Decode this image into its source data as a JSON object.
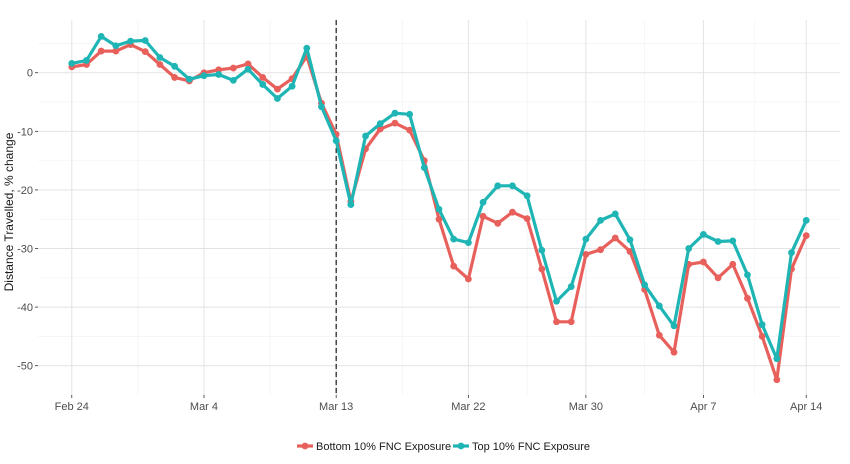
{
  "chart_data": {
    "type": "line",
    "ylabel": "Distance Travelled, % change",
    "xlabel": "",
    "ylim": [
      -55,
      9
    ],
    "y_ticks": [
      0,
      -10,
      -20,
      -30,
      -40,
      -50
    ],
    "y_tick_labels": [
      "0",
      "-10",
      "-20",
      "-30",
      "-40",
      "-50"
    ],
    "x_tick_labels": [
      "Feb 24",
      "Mar  4",
      "Mar 13",
      "Mar 22",
      "Mar 30",
      "Apr  7",
      "Apr 14"
    ],
    "x_tick_index": [
      0,
      9,
      18,
      27,
      35,
      43,
      50
    ],
    "x_range": [
      -2.3,
      52.3
    ],
    "vline_index": 18,
    "grid": true,
    "legend_position": "bottom",
    "series": [
      {
        "name": "Bottom 10% FNC Exposure",
        "color": "#E8605C",
        "values": [
          1.0,
          1.4,
          3.7,
          3.7,
          4.8,
          3.6,
          1.4,
          -0.8,
          -1.4,
          0.0,
          0.5,
          0.8,
          1.5,
          -0.8,
          -2.8,
          -1.0,
          2.8,
          -5.2,
          -10.5,
          -22.0,
          -13.0,
          -9.6,
          -8.6,
          -9.8,
          -15.0,
          -25.0,
          -33.0,
          -35.2,
          -24.5,
          -25.7,
          -23.8,
          -24.9,
          -33.5,
          -42.5,
          -42.5,
          -31.0,
          -30.2,
          -28.2,
          -30.5,
          -37.0,
          -44.8,
          -47.7,
          -32.7,
          -32.3,
          -35.0,
          -32.7,
          -38.5,
          -45.0,
          -52.4,
          -33.5,
          -27.8
        ]
      },
      {
        "name": "Top 10% FNC Exposure",
        "color": "#1FB5B5",
        "values": [
          1.6,
          2.1,
          6.2,
          4.6,
          5.4,
          5.5,
          2.6,
          1.1,
          -1.1,
          -0.5,
          -0.3,
          -1.3,
          0.6,
          -2.0,
          -4.4,
          -2.3,
          4.2,
          -5.8,
          -11.6,
          -22.5,
          -10.8,
          -8.7,
          -6.9,
          -7.1,
          -16.2,
          -23.3,
          -28.4,
          -29.0,
          -22.1,
          -19.3,
          -19.3,
          -21.0,
          -30.3,
          -39.0,
          -36.5,
          -28.4,
          -25.2,
          -24.1,
          -28.5,
          -36.2,
          -39.8,
          -43.2,
          -30.0,
          -27.6,
          -28.8,
          -28.7,
          -34.5,
          -43.0,
          -48.8,
          -30.7,
          -25.2
        ]
      }
    ]
  }
}
